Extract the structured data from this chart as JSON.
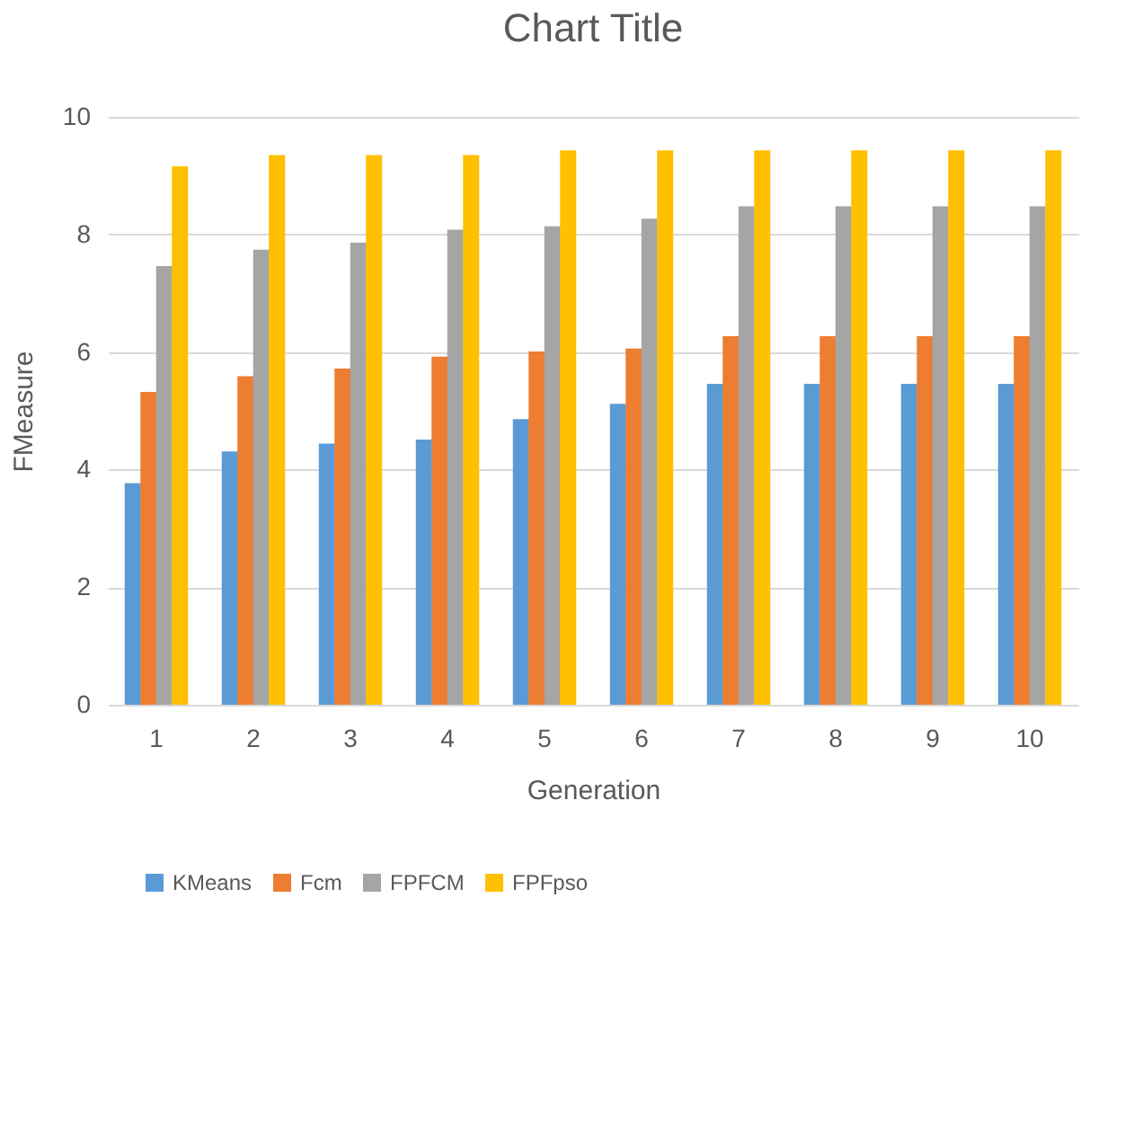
{
  "chart_data": {
    "type": "bar",
    "title": "Chart Title",
    "xlabel": "Generation",
    "ylabel": "FMeasure",
    "categories": [
      "1",
      "2",
      "3",
      "4",
      "5",
      "6",
      "7",
      "8",
      "9",
      "10"
    ],
    "series": [
      {
        "name": "KMeans",
        "color": "#5b9bd5",
        "values": [
          3.77,
          4.31,
          4.44,
          4.51,
          4.86,
          5.12,
          5.46,
          5.46,
          5.46,
          5.46
        ]
      },
      {
        "name": "Fcm",
        "color": "#ed7d31",
        "values": [
          5.32,
          5.59,
          5.72,
          5.92,
          6.01,
          6.06,
          6.27,
          6.27,
          6.27,
          6.27
        ]
      },
      {
        "name": "FPFCM",
        "color": "#a5a5a5",
        "values": [
          7.46,
          7.74,
          7.86,
          8.08,
          8.14,
          8.27,
          8.48,
          8.48,
          8.48,
          8.48
        ]
      },
      {
        "name": "FPFpso",
        "color": "#ffc000",
        "values": [
          9.16,
          9.35,
          9.35,
          9.35,
          9.43,
          9.43,
          9.43,
          9.43,
          9.43,
          9.43
        ]
      }
    ],
    "ylim": [
      0,
      10
    ],
    "yticks": [
      0,
      2,
      4,
      6,
      8,
      10
    ],
    "grid": "y",
    "legend": "bottom"
  }
}
